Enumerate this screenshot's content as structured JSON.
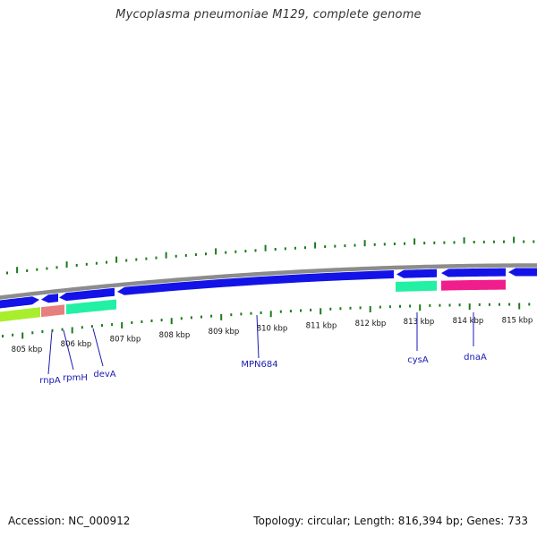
{
  "header": {
    "title": "Mycoplasma pneumoniae M129, complete genome"
  },
  "footer": {
    "accession": "Accession: NC_000912",
    "summary": "Topology: circular; Length: 816,394 bp; Genes: 733"
  },
  "colors": {
    "cds_blue": "#1313e8",
    "backbone": "#8c8c8c",
    "tick_green": "#1c7a1c",
    "label_blue": "#1a1ab4",
    "yellow_green": "#a8ee2c",
    "salmon": "#e77f7f",
    "spring_green": "#22f0a4",
    "deep_pink": "#f01d8c"
  },
  "kbp_labels": [
    "805 kbp",
    "806 kbp",
    "807 kbp",
    "808 kbp",
    "809 kbp",
    "810 kbp",
    "811 kbp",
    "812 kbp",
    "813 kbp",
    "814 kbp",
    "815 kbp"
  ],
  "genes": [
    {
      "name": "rnpA"
    },
    {
      "name": "rpmH"
    },
    {
      "name": "devA"
    },
    {
      "name": "MPN684"
    },
    {
      "name": "cysA"
    },
    {
      "name": "dnaA"
    }
  ]
}
